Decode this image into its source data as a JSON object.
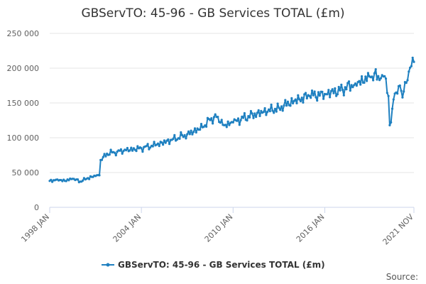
{
  "chart_data": {
    "type": "line",
    "title": "GBServTO: 45-96 - GB Services TOTAL (£m)",
    "xlabel": "",
    "ylabel": "",
    "ylim": [
      0,
      250000
    ],
    "y_ticks": [
      "0",
      "50 000",
      "100 000",
      "150 000",
      "200 000",
      "250 000"
    ],
    "x_ticks": [
      "1998 JAN",
      "2004 JAN",
      "2010 JAN",
      "2016 JAN",
      "2021 NOV"
    ],
    "grid": "horizontal",
    "legend_position": "bottom",
    "series": [
      {
        "name": "GBServTO: 45-96 - GB Services TOTAL (£m)",
        "color": "#1f80c0",
        "x_range": [
          "1998-01",
          "2021-11"
        ],
        "frequency": "monthly",
        "anchors": [
          [
            "1998-01",
            38000
          ],
          [
            "1998-07",
            40000
          ],
          [
            "1999-01",
            38000
          ],
          [
            "1999-07",
            41000
          ],
          [
            "2000-01",
            37000
          ],
          [
            "2000-07",
            42000
          ],
          [
            "2001-01",
            45000
          ],
          [
            "2001-04",
            46000
          ],
          [
            "2001-05",
            68000
          ],
          [
            "2001-10",
            77000
          ],
          [
            "2002-06",
            80000
          ],
          [
            "2003-01",
            82000
          ],
          [
            "2004-01",
            85000
          ],
          [
            "2005-01",
            90000
          ],
          [
            "2006-01",
            97000
          ],
          [
            "2007-01",
            105000
          ],
          [
            "2008-01",
            115000
          ],
          [
            "2008-08",
            128000
          ],
          [
            "2009-01",
            130000
          ],
          [
            "2009-06",
            118000
          ],
          [
            "2010-01",
            122000
          ],
          [
            "2011-01",
            131000
          ],
          [
            "2012-01",
            137000
          ],
          [
            "2013-01",
            143000
          ],
          [
            "2014-01",
            153000
          ],
          [
            "2015-01",
            160000
          ],
          [
            "2016-01",
            163000
          ],
          [
            "2017-01",
            168000
          ],
          [
            "2018-01",
            178000
          ],
          [
            "2019-01",
            187000
          ],
          [
            "2019-10",
            190000
          ],
          [
            "2020-01",
            185000
          ],
          [
            "2020-03",
            160000
          ],
          [
            "2020-04",
            118000
          ],
          [
            "2020-05",
            122000
          ],
          [
            "2020-07",
            155000
          ],
          [
            "2020-09",
            165000
          ],
          [
            "2020-12",
            175000
          ],
          [
            "2021-02",
            158000
          ],
          [
            "2021-04",
            180000
          ],
          [
            "2021-07",
            195000
          ],
          [
            "2021-09",
            203000
          ],
          [
            "2021-10",
            215000
          ],
          [
            "2021-11",
            209000
          ]
        ]
      }
    ]
  },
  "source_label": "Source:"
}
